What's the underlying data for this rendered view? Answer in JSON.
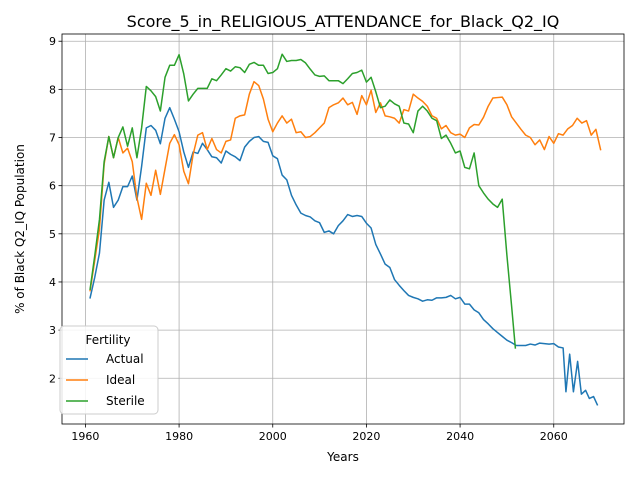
{
  "chart_data": {
    "type": "line",
    "title": "Score_5_in_RELIGIOUS_ATTENDANCE_for_Black_Q2_IQ",
    "xlabel": "Years",
    "ylabel": "% of Black Q2_IQ Population",
    "xlim": [
      1955,
      2075
    ],
    "ylim": [
      1.05,
      9.15
    ],
    "xticks": [
      1960,
      1980,
      2000,
      2020,
      2040,
      2060
    ],
    "yticks": [
      2,
      3,
      4,
      5,
      6,
      7,
      8,
      9
    ],
    "grid": true,
    "legend": {
      "title": "Fertility",
      "placement": "lower-left"
    },
    "series": [
      {
        "name": "Actual",
        "color": "#1f77b4",
        "points": [
          [
            1961,
            3.67
          ],
          [
            1962,
            4.1
          ],
          [
            1963,
            4.6
          ],
          [
            1964,
            5.7
          ],
          [
            1965,
            6.07
          ],
          [
            1966,
            5.55
          ],
          [
            1967,
            5.7
          ],
          [
            1968,
            5.98
          ],
          [
            1969,
            5.98
          ],
          [
            1970,
            6.2
          ],
          [
            1971,
            5.7
          ],
          [
            1972,
            6.4
          ],
          [
            1973,
            7.2
          ],
          [
            1974,
            7.25
          ],
          [
            1975,
            7.15
          ],
          [
            1976,
            6.87
          ],
          [
            1977,
            7.4
          ],
          [
            1978,
            7.62
          ],
          [
            1979,
            7.38
          ],
          [
            1980,
            7.12
          ],
          [
            1981,
            6.7
          ],
          [
            1982,
            6.38
          ],
          [
            1983,
            6.7
          ],
          [
            1984,
            6.67
          ],
          [
            1985,
            6.88
          ],
          [
            1986,
            6.75
          ],
          [
            1987,
            6.6
          ],
          [
            1988,
            6.58
          ],
          [
            1989,
            6.47
          ],
          [
            1990,
            6.72
          ],
          [
            1991,
            6.65
          ],
          [
            1992,
            6.6
          ],
          [
            1993,
            6.52
          ],
          [
            1994,
            6.8
          ],
          [
            1995,
            6.92
          ],
          [
            1996,
            7.0
          ],
          [
            1997,
            7.02
          ],
          [
            1998,
            6.92
          ],
          [
            1999,
            6.9
          ],
          [
            2000,
            6.62
          ],
          [
            2001,
            6.56
          ],
          [
            2002,
            6.22
          ],
          [
            2003,
            6.12
          ],
          [
            2004,
            5.8
          ],
          [
            2005,
            5.6
          ],
          [
            2006,
            5.43
          ],
          [
            2007,
            5.38
          ],
          [
            2008,
            5.35
          ],
          [
            2009,
            5.27
          ],
          [
            2010,
            5.23
          ],
          [
            2011,
            5.03
          ],
          [
            2012,
            5.06
          ],
          [
            2013,
            5.0
          ],
          [
            2014,
            5.17
          ],
          [
            2015,
            5.27
          ],
          [
            2016,
            5.4
          ],
          [
            2017,
            5.36
          ],
          [
            2018,
            5.38
          ],
          [
            2019,
            5.36
          ],
          [
            2020,
            5.22
          ],
          [
            2021,
            5.12
          ],
          [
            2022,
            4.78
          ],
          [
            2023,
            4.58
          ],
          [
            2024,
            4.37
          ],
          [
            2025,
            4.3
          ],
          [
            2026,
            4.05
          ],
          [
            2027,
            3.93
          ],
          [
            2028,
            3.82
          ],
          [
            2029,
            3.72
          ],
          [
            2030,
            3.68
          ],
          [
            2031,
            3.65
          ],
          [
            2032,
            3.6
          ],
          [
            2033,
            3.63
          ],
          [
            2034,
            3.62
          ],
          [
            2035,
            3.67
          ],
          [
            2036,
            3.67
          ],
          [
            2037,
            3.68
          ],
          [
            2038,
            3.72
          ],
          [
            2039,
            3.65
          ],
          [
            2040,
            3.68
          ],
          [
            2041,
            3.54
          ],
          [
            2042,
            3.54
          ],
          [
            2043,
            3.42
          ],
          [
            2044,
            3.36
          ],
          [
            2045,
            3.22
          ],
          [
            2046,
            3.13
          ],
          [
            2047,
            3.03
          ],
          [
            2048,
            2.95
          ],
          [
            2049,
            2.87
          ],
          [
            2050,
            2.79
          ],
          [
            2051,
            2.74
          ],
          [
            2052,
            2.68
          ],
          [
            2053,
            2.68
          ],
          [
            2054,
            2.68
          ],
          [
            2055,
            2.71
          ],
          [
            2056,
            2.69
          ],
          [
            2057,
            2.73
          ],
          [
            2058,
            2.72
          ],
          [
            2059,
            2.71
          ],
          [
            2060,
            2.72
          ],
          [
            2061,
            2.65
          ],
          [
            2062,
            2.63
          ],
          [
            2062.6,
            1.72
          ],
          [
            2063.4,
            2.5
          ],
          [
            2064.2,
            1.72
          ],
          [
            2065.1,
            2.35
          ],
          [
            2065.9,
            1.67
          ],
          [
            2066.8,
            1.75
          ],
          [
            2067.6,
            1.58
          ],
          [
            2068.5,
            1.62
          ],
          [
            2069.3,
            1.45
          ]
        ]
      },
      {
        "name": "Ideal",
        "color": "#ff7f0e",
        "points": [
          [
            1961,
            3.82
          ],
          [
            1962,
            4.45
          ],
          [
            1963,
            5.1
          ],
          [
            1964,
            6.45
          ],
          [
            1965,
            7.02
          ],
          [
            1966,
            6.58
          ],
          [
            1967,
            7.0
          ],
          [
            1968,
            6.68
          ],
          [
            1969,
            6.78
          ],
          [
            1970,
            6.5
          ],
          [
            1971,
            5.75
          ],
          [
            1972,
            5.3
          ],
          [
            1973,
            6.05
          ],
          [
            1974,
            5.8
          ],
          [
            1975,
            6.32
          ],
          [
            1976,
            5.82
          ],
          [
            1977,
            6.35
          ],
          [
            1978,
            6.88
          ],
          [
            1979,
            7.06
          ],
          [
            1980,
            6.85
          ],
          [
            1981,
            6.3
          ],
          [
            1982,
            6.04
          ],
          [
            1983,
            6.65
          ],
          [
            1984,
            7.05
          ],
          [
            1985,
            7.1
          ],
          [
            1986,
            6.75
          ],
          [
            1987,
            6.98
          ],
          [
            1988,
            6.75
          ],
          [
            1989,
            6.68
          ],
          [
            1990,
            6.92
          ],
          [
            1991,
            6.95
          ],
          [
            1992,
            7.4
          ],
          [
            1993,
            7.45
          ],
          [
            1994,
            7.47
          ],
          [
            1995,
            7.9
          ],
          [
            1996,
            8.16
          ],
          [
            1997,
            8.08
          ],
          [
            1998,
            7.8
          ],
          [
            1999,
            7.38
          ],
          [
            2000,
            7.12
          ],
          [
            2001,
            7.3
          ],
          [
            2002,
            7.45
          ],
          [
            2003,
            7.3
          ],
          [
            2004,
            7.38
          ],
          [
            2005,
            7.1
          ],
          [
            2006,
            7.12
          ],
          [
            2007,
            7.0
          ],
          [
            2008,
            7.02
          ],
          [
            2009,
            7.1
          ],
          [
            2010,
            7.2
          ],
          [
            2011,
            7.3
          ],
          [
            2012,
            7.62
          ],
          [
            2013,
            7.68
          ],
          [
            2014,
            7.72
          ],
          [
            2015,
            7.82
          ],
          [
            2016,
            7.68
          ],
          [
            2017,
            7.73
          ],
          [
            2018,
            7.48
          ],
          [
            2019,
            7.87
          ],
          [
            2020,
            7.68
          ],
          [
            2021,
            7.98
          ],
          [
            2022,
            7.52
          ],
          [
            2023,
            7.72
          ],
          [
            2024,
            7.45
          ],
          [
            2025,
            7.43
          ],
          [
            2026,
            7.4
          ],
          [
            2027,
            7.3
          ],
          [
            2028,
            7.58
          ],
          [
            2029,
            7.55
          ],
          [
            2030,
            7.9
          ],
          [
            2031,
            7.82
          ],
          [
            2032,
            7.75
          ],
          [
            2033,
            7.65
          ],
          [
            2034,
            7.45
          ],
          [
            2035,
            7.4
          ],
          [
            2036,
            7.18
          ],
          [
            2037,
            7.25
          ],
          [
            2038,
            7.1
          ],
          [
            2039,
            7.05
          ],
          [
            2040,
            7.07
          ],
          [
            2041,
            7.0
          ],
          [
            2042,
            7.2
          ],
          [
            2043,
            7.27
          ],
          [
            2044,
            7.26
          ],
          [
            2045,
            7.42
          ],
          [
            2046,
            7.65
          ],
          [
            2047,
            7.82
          ],
          [
            2048,
            7.83
          ],
          [
            2049,
            7.84
          ],
          [
            2050,
            7.68
          ],
          [
            2051,
            7.43
          ],
          [
            2052,
            7.3
          ],
          [
            2053,
            7.17
          ],
          [
            2054,
            7.05
          ],
          [
            2055,
            7.0
          ],
          [
            2056,
            6.85
          ],
          [
            2057,
            6.95
          ],
          [
            2058,
            6.75
          ],
          [
            2059,
            7.02
          ],
          [
            2060,
            6.88
          ],
          [
            2061,
            7.08
          ],
          [
            2062,
            7.05
          ],
          [
            2063,
            7.18
          ],
          [
            2064,
            7.25
          ],
          [
            2065,
            7.4
          ],
          [
            2066,
            7.3
          ],
          [
            2067,
            7.35
          ],
          [
            2068,
            7.05
          ],
          [
            2069,
            7.17
          ],
          [
            2070,
            6.75
          ]
        ]
      },
      {
        "name": "Sterile",
        "color": "#2ca02c",
        "points": [
          [
            1961,
            3.85
          ],
          [
            1962,
            4.55
          ],
          [
            1963,
            5.3
          ],
          [
            1964,
            6.5
          ],
          [
            1965,
            7.02
          ],
          [
            1966,
            6.58
          ],
          [
            1967,
            7.0
          ],
          [
            1968,
            7.22
          ],
          [
            1969,
            6.82
          ],
          [
            1970,
            7.2
          ],
          [
            1971,
            6.58
          ],
          [
            1972,
            7.2
          ],
          [
            1973,
            8.06
          ],
          [
            1974,
            7.97
          ],
          [
            1975,
            7.85
          ],
          [
            1976,
            7.55
          ],
          [
            1977,
            8.25
          ],
          [
            1978,
            8.5
          ],
          [
            1979,
            8.5
          ],
          [
            1980,
            8.72
          ],
          [
            1981,
            8.32
          ],
          [
            1982,
            7.76
          ],
          [
            1983,
            7.9
          ],
          [
            1984,
            8.02
          ],
          [
            1985,
            8.02
          ],
          [
            1986,
            8.02
          ],
          [
            1987,
            8.22
          ],
          [
            1988,
            8.18
          ],
          [
            1989,
            8.3
          ],
          [
            1990,
            8.43
          ],
          [
            1991,
            8.38
          ],
          [
            1992,
            8.47
          ],
          [
            1993,
            8.45
          ],
          [
            1994,
            8.35
          ],
          [
            1995,
            8.52
          ],
          [
            1996,
            8.56
          ],
          [
            1997,
            8.5
          ],
          [
            1998,
            8.5
          ],
          [
            1999,
            8.33
          ],
          [
            2000,
            8.35
          ],
          [
            2001,
            8.43
          ],
          [
            2002,
            8.73
          ],
          [
            2003,
            8.58
          ],
          [
            2004,
            8.6
          ],
          [
            2005,
            8.6
          ],
          [
            2006,
            8.62
          ],
          [
            2007,
            8.55
          ],
          [
            2008,
            8.42
          ],
          [
            2009,
            8.3
          ],
          [
            2010,
            8.27
          ],
          [
            2011,
            8.28
          ],
          [
            2012,
            8.18
          ],
          [
            2013,
            8.18
          ],
          [
            2014,
            8.18
          ],
          [
            2015,
            8.12
          ],
          [
            2016,
            8.22
          ],
          [
            2017,
            8.33
          ],
          [
            2018,
            8.35
          ],
          [
            2019,
            8.4
          ],
          [
            2020,
            8.15
          ],
          [
            2021,
            8.25
          ],
          [
            2022,
            7.95
          ],
          [
            2023,
            7.62
          ],
          [
            2024,
            7.65
          ],
          [
            2025,
            7.78
          ],
          [
            2026,
            7.7
          ],
          [
            2027,
            7.65
          ],
          [
            2028,
            7.3
          ],
          [
            2029,
            7.28
          ],
          [
            2030,
            7.1
          ],
          [
            2031,
            7.55
          ],
          [
            2032,
            7.65
          ],
          [
            2033,
            7.55
          ],
          [
            2034,
            7.4
          ],
          [
            2035,
            7.35
          ],
          [
            2036,
            6.98
          ],
          [
            2037,
            7.05
          ],
          [
            2038,
            6.88
          ],
          [
            2039,
            6.68
          ],
          [
            2040,
            6.72
          ],
          [
            2041,
            6.38
          ],
          [
            2042,
            6.35
          ],
          [
            2043,
            6.68
          ],
          [
            2044,
            6.0
          ],
          [
            2045,
            5.85
          ],
          [
            2046,
            5.72
          ],
          [
            2047,
            5.62
          ],
          [
            2048,
            5.55
          ],
          [
            2049,
            5.72
          ],
          [
            2050,
            4.55
          ],
          [
            2051,
            3.5
          ],
          [
            2051.8,
            2.63
          ]
        ]
      }
    ]
  }
}
